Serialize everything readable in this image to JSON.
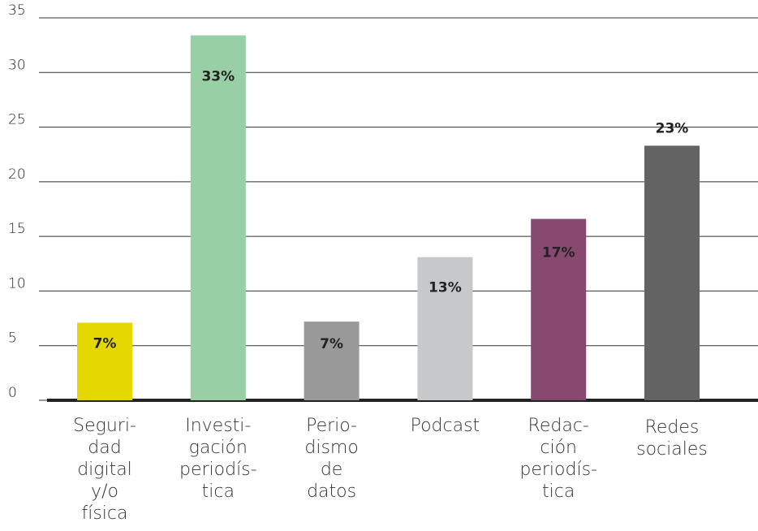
{
  "chart_data": {
    "type": "bar",
    "categories": [
      [
        "Seguri-",
        "dad",
        "digital",
        "y/o",
        "física"
      ],
      [
        "Investi-",
        "gación",
        "periodís-",
        "tica"
      ],
      [
        "Perio-",
        "dismo",
        "de",
        "datos"
      ],
      [
        "Podcast"
      ],
      [
        "Redac-",
        "ción",
        "periodís-",
        "tica"
      ],
      [
        "Redes",
        "sociales"
      ]
    ],
    "values": [
      7.1,
      33.4,
      7.2,
      13.1,
      16.6,
      23.3
    ],
    "value_labels": [
      "7%",
      "33%",
      "7%",
      "13%",
      "17%",
      "23%"
    ],
    "colors": [
      "#e5d800",
      "#98cfa4",
      "#999999",
      "#c7c8ca",
      "#87496f",
      "#636363"
    ],
    "ylim": [
      0,
      35
    ],
    "yticks": [
      0,
      5,
      10,
      15,
      20,
      25,
      30,
      35
    ],
    "grid": true
  }
}
